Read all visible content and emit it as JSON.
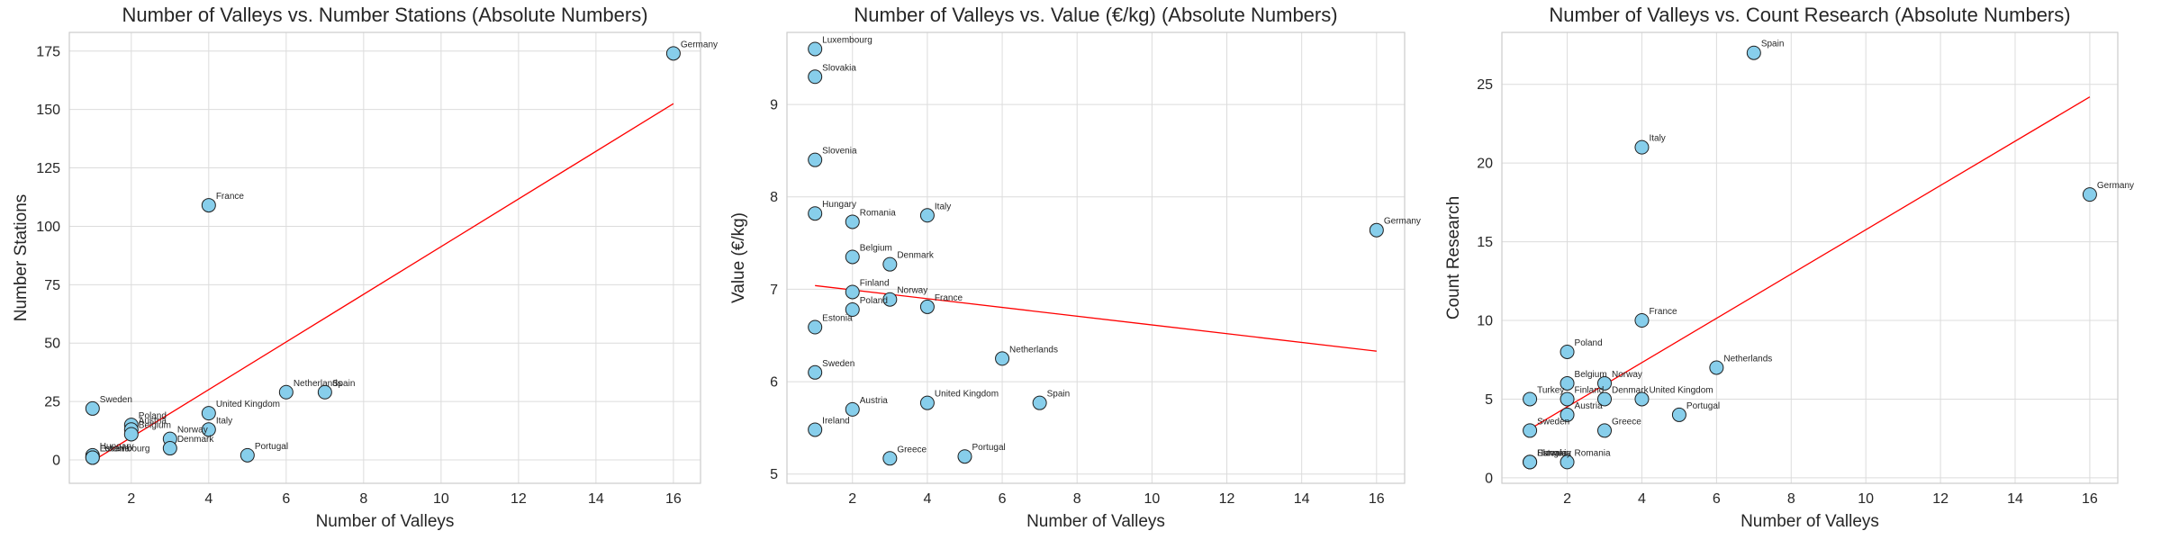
{
  "colors": {
    "point_fill": "#87ceeb",
    "point_edge": "#1f1f1f",
    "trend_line": "#ff0000",
    "grid": "#dcdcdc",
    "frame": "#cccccc"
  },
  "chart_data": [
    {
      "type": "scatter",
      "title": "Number of Valleys vs. Number Stations (Absolute Numbers)",
      "xlabel": "Number of Valleys",
      "ylabel": "Number Stations",
      "xlim": [
        0.4,
        16.7
      ],
      "ylim": [
        -10,
        183
      ],
      "xticks": [
        2,
        4,
        6,
        8,
        10,
        12,
        14,
        16
      ],
      "yticks": [
        0,
        25,
        50,
        75,
        100,
        125,
        150,
        175
      ],
      "grid": true,
      "trend": {
        "x": [
          1,
          16
        ],
        "y": [
          -0.5,
          152.5
        ]
      },
      "points": [
        {
          "label": "Germany",
          "x": 16,
          "y": 174
        },
        {
          "label": "France",
          "x": 4,
          "y": 109
        },
        {
          "label": "Sweden",
          "x": 1,
          "y": 22
        },
        {
          "label": "Netherlands",
          "x": 6,
          "y": 29
        },
        {
          "label": "Spain",
          "x": 7,
          "y": 29
        },
        {
          "label": "United Kingdom",
          "x": 4,
          "y": 20
        },
        {
          "label": "Poland",
          "x": 2,
          "y": 15
        },
        {
          "label": "Austria",
          "x": 2,
          "y": 13
        },
        {
          "label": "Belgium",
          "x": 2,
          "y": 11
        },
        {
          "label": "Italy",
          "x": 4,
          "y": 13
        },
        {
          "label": "Norway",
          "x": 3,
          "y": 9
        },
        {
          "label": "Denmark",
          "x": 3,
          "y": 5
        },
        {
          "label": "Portugal",
          "x": 5,
          "y": 2
        },
        {
          "label": "Hungary",
          "x": 1,
          "y": 2
        },
        {
          "label": "Estonia",
          "x": 1,
          "y": 1
        },
        {
          "label": "Luxembourg",
          "x": 1,
          "y": 1
        }
      ]
    },
    {
      "type": "scatter",
      "title": "Number of Valleys vs. Value (€/kg) (Absolute Numbers)",
      "xlabel": "Number of Valleys",
      "ylabel": "Value (€/kg)",
      "xlim": [
        0.25,
        16.75
      ],
      "ylim": [
        4.9,
        9.78
      ],
      "xticks": [
        2,
        4,
        6,
        8,
        10,
        12,
        14,
        16
      ],
      "yticks": [
        5,
        6,
        7,
        8,
        9
      ],
      "grid": true,
      "trend": {
        "x": [
          1,
          16
        ],
        "y": [
          7.04,
          6.33
        ]
      },
      "points": [
        {
          "label": "Luxembourg",
          "x": 1,
          "y": 9.6
        },
        {
          "label": "Slovakia",
          "x": 1,
          "y": 9.3
        },
        {
          "label": "Slovenia",
          "x": 1,
          "y": 8.4
        },
        {
          "label": "Hungary",
          "x": 1,
          "y": 7.82
        },
        {
          "label": "Romania",
          "x": 2,
          "y": 7.73
        },
        {
          "label": "Italy",
          "x": 4,
          "y": 7.8
        },
        {
          "label": "Germany",
          "x": 16,
          "y": 7.64
        },
        {
          "label": "Belgium",
          "x": 2,
          "y": 7.35
        },
        {
          "label": "Denmark",
          "x": 3,
          "y": 7.27
        },
        {
          "label": "Finland",
          "x": 2,
          "y": 6.97
        },
        {
          "label": "Norway",
          "x": 3,
          "y": 6.89
        },
        {
          "label": "Poland",
          "x": 2,
          "y": 6.78
        },
        {
          "label": "France",
          "x": 4,
          "y": 6.81
        },
        {
          "label": "Estonia",
          "x": 1,
          "y": 6.59
        },
        {
          "label": "Netherlands",
          "x": 6,
          "y": 6.25
        },
        {
          "label": "Sweden",
          "x": 1,
          "y": 6.1
        },
        {
          "label": "Austria",
          "x": 2,
          "y": 5.7
        },
        {
          "label": "United Kingdom",
          "x": 4,
          "y": 5.77
        },
        {
          "label": "Spain",
          "x": 7,
          "y": 5.77
        },
        {
          "label": "Ireland",
          "x": 1,
          "y": 5.48
        },
        {
          "label": "Greece",
          "x": 3,
          "y": 5.17
        },
        {
          "label": "Portugal",
          "x": 5,
          "y": 5.19
        }
      ]
    },
    {
      "type": "scatter",
      "title": "Number of Valleys vs. Count Research (Absolute Numbers)",
      "xlabel": "Number of Valleys",
      "ylabel": "Count Research",
      "xlim": [
        0.25,
        16.75
      ],
      "ylim": [
        -0.35,
        28.3
      ],
      "xticks": [
        2,
        4,
        6,
        8,
        10,
        12,
        14,
        16
      ],
      "yticks": [
        0,
        5,
        10,
        15,
        20,
        25
      ],
      "grid": true,
      "trend": {
        "x": [
          1,
          16
        ],
        "y": [
          3.1,
          24.2
        ]
      },
      "points": [
        {
          "label": "Spain",
          "x": 7,
          "y": 27
        },
        {
          "label": "Italy",
          "x": 4,
          "y": 21
        },
        {
          "label": "Germany",
          "x": 16,
          "y": 18
        },
        {
          "label": "France",
          "x": 4,
          "y": 10
        },
        {
          "label": "Poland",
          "x": 2,
          "y": 8
        },
        {
          "label": "Netherlands",
          "x": 6,
          "y": 7
        },
        {
          "label": "Belgium",
          "x": 2,
          "y": 6
        },
        {
          "label": "Norway",
          "x": 3,
          "y": 6
        },
        {
          "label": "Turkey",
          "x": 1,
          "y": 5
        },
        {
          "label": "Finland",
          "x": 2,
          "y": 5
        },
        {
          "label": "Denmark",
          "x": 3,
          "y": 5
        },
        {
          "label": "United Kingdom",
          "x": 4,
          "y": 5
        },
        {
          "label": "Austria",
          "x": 2,
          "y": 4
        },
        {
          "label": "Portugal",
          "x": 5,
          "y": 4
        },
        {
          "label": "Sweden",
          "x": 1,
          "y": 3
        },
        {
          "label": "Greece",
          "x": 3,
          "y": 3
        },
        {
          "label": "Slovakia",
          "x": 1,
          "y": 1
        },
        {
          "label": "Hungary",
          "x": 1,
          "y": 1
        },
        {
          "label": "Estonia",
          "x": 1,
          "y": 1
        },
        {
          "label": "Romania",
          "x": 2,
          "y": 1
        }
      ]
    }
  ]
}
